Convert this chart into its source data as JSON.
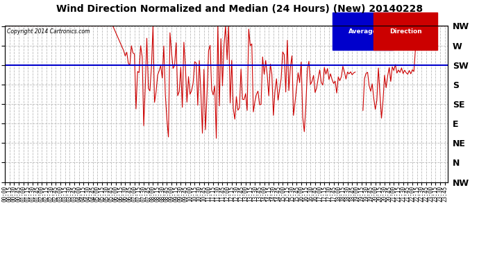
{
  "title": "Wind Direction Normalized and Median (24 Hours) (New) 20140228",
  "copyright": "Copyright 2014 Cartronics.com",
  "background_color": "#ffffff",
  "plot_bg_color": "#ffffff",
  "y_labels": [
    "NW",
    "W",
    "SW",
    "S",
    "SE",
    "E",
    "NE",
    "N",
    "NW"
  ],
  "y_values": [
    315,
    270,
    225,
    180,
    135,
    90,
    45,
    0,
    -45
  ],
  "y_min": -45,
  "y_max": 315,
  "median_value": 225,
  "legend_average_color": "#0000cc",
  "legend_direction_color": "#cc0000",
  "line_color": "#cc0000",
  "median_line_color": "#0000cc",
  "grid_color": "#aaaaaa",
  "title_fontsize": 10,
  "axis_fontsize": 8
}
